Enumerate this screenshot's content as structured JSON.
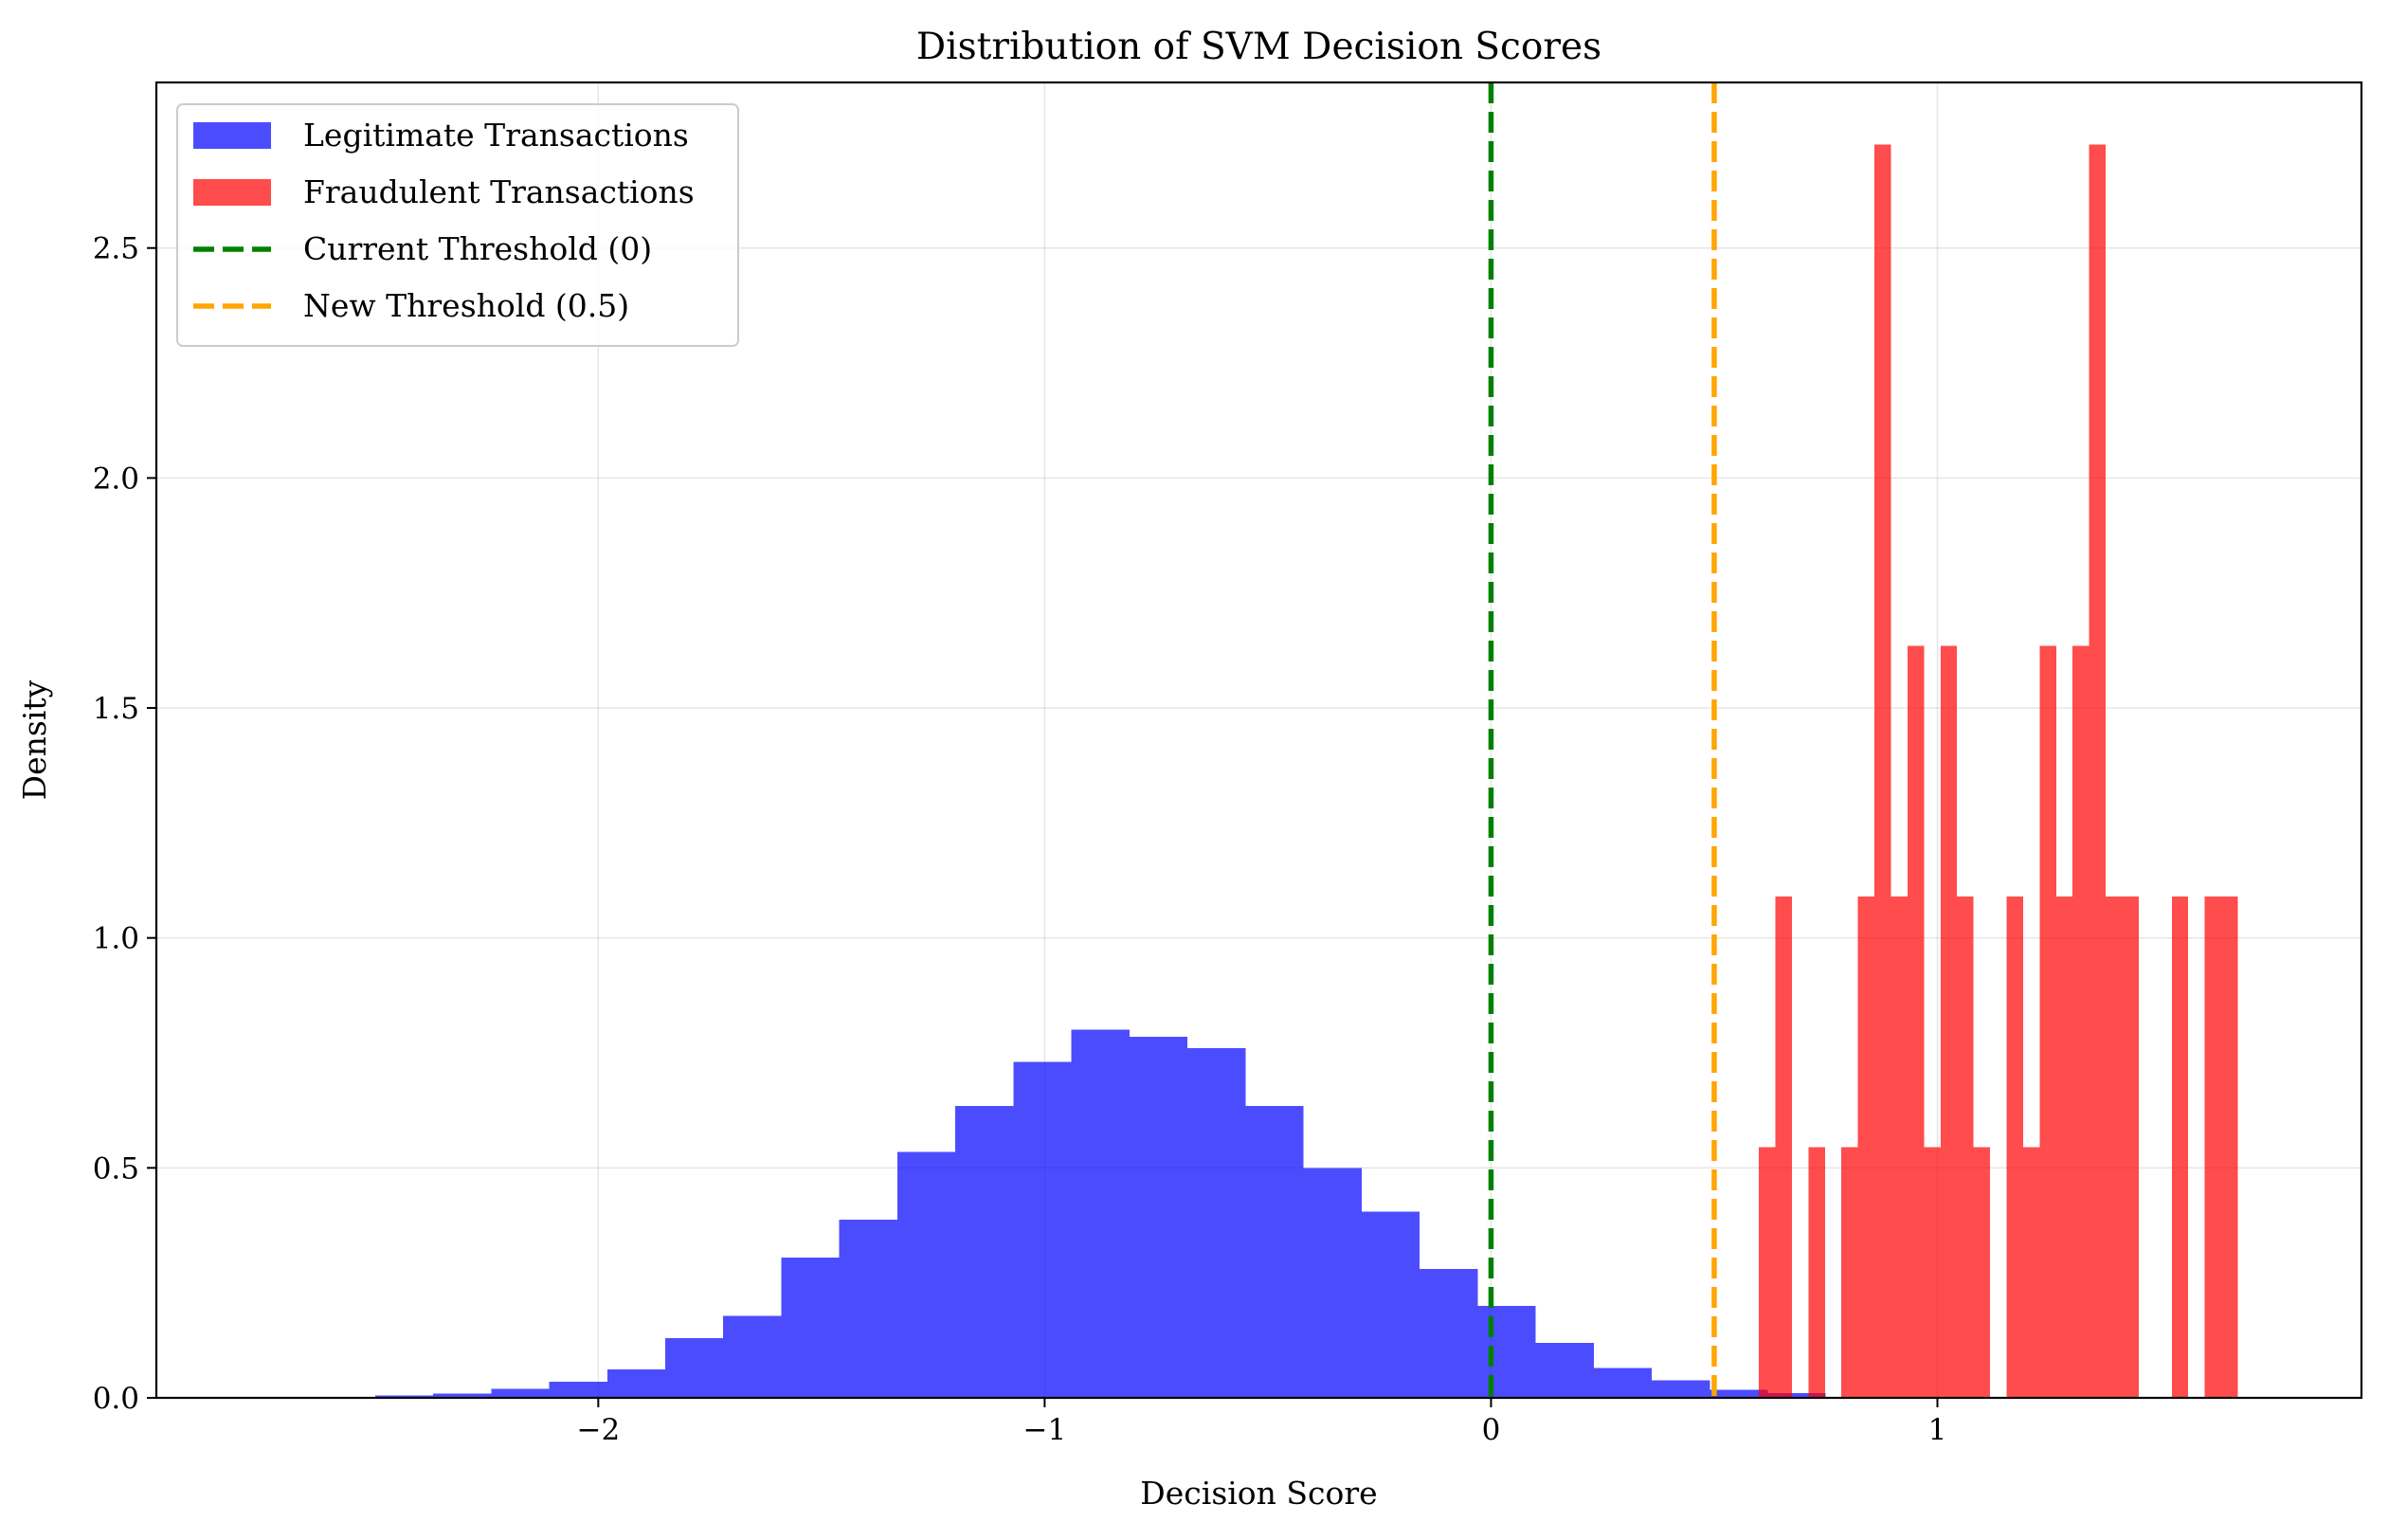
{
  "chart_data": {
    "type": "bar",
    "title": "Distribution of SVM Decision Scores",
    "xlabel": "Decision Score",
    "ylabel": "Density",
    "xlim": [
      -2.99,
      1.95
    ],
    "ylim": [
      0,
      2.86
    ],
    "xticks": [
      {
        "value": -2,
        "label": "−2"
      },
      {
        "value": -1,
        "label": "−1"
      },
      {
        "value": 0,
        "label": "0"
      },
      {
        "value": 1,
        "label": "1"
      }
    ],
    "yticks": [
      {
        "value": 0.0,
        "label": "0.0"
      },
      {
        "value": 0.5,
        "label": "0.5"
      },
      {
        "value": 1.0,
        "label": "1.0"
      },
      {
        "value": 1.5,
        "label": "1.5"
      },
      {
        "value": 2.0,
        "label": "2.0"
      },
      {
        "value": 2.5,
        "label": "2.5"
      }
    ],
    "grid": true,
    "legend_position": "top-left",
    "series": [
      {
        "name": "Legitimate Transactions",
        "kind": "histogram",
        "color": "#0000ff",
        "opacity": 0.7,
        "bin_edges": [
          -2.5,
          -2.37,
          -2.24,
          -2.11,
          -1.98,
          -1.85,
          -1.72,
          -1.59,
          -1.46,
          -1.33,
          -1.2,
          -1.07,
          -0.94,
          -0.81,
          -0.68,
          -0.55,
          -0.42,
          -0.29,
          -0.16,
          -0.03,
          0.1,
          0.23,
          0.36,
          0.49,
          0.62,
          0.75
        ],
        "values": [
          0.005,
          0.009,
          0.02,
          0.035,
          0.062,
          0.13,
          0.178,
          0.305,
          0.387,
          0.535,
          0.635,
          0.73,
          0.8,
          0.785,
          0.76,
          0.635,
          0.5,
          0.405,
          0.28,
          0.2,
          0.12,
          0.065,
          0.038,
          0.018,
          0.01
        ]
      },
      {
        "name": "Fraudulent Transactions",
        "kind": "histogram",
        "color": "#ff0000",
        "opacity": 0.7,
        "bin_edges": [
          0.6,
          0.637,
          0.674,
          0.711,
          0.748,
          0.785,
          0.822,
          0.859,
          0.896,
          0.933,
          0.97,
          1.007,
          1.044,
          1.081,
          1.118,
          1.155,
          1.192,
          1.229,
          1.266,
          1.303,
          1.34,
          1.377,
          1.414,
          1.451,
          1.488,
          1.525,
          1.562,
          1.599,
          1.636,
          1.673,
          1.71
        ],
        "values": [
          0.545,
          1.09,
          0,
          0.545,
          0,
          0.545,
          1.09,
          2.725,
          1.09,
          1.635,
          0.545,
          1.635,
          1.09,
          0.545,
          0,
          1.09,
          0.545,
          1.635,
          1.09,
          1.635,
          2.725,
          1.09,
          1.09,
          0,
          0,
          1.09,
          0,
          1.09,
          1.09,
          0
        ]
      }
    ],
    "reference_lines": [
      {
        "name": "Current Threshold (0)",
        "x": 0,
        "color": "#008000",
        "style": "dashed"
      },
      {
        "name": "New Threshold (0.5)",
        "x": 0.5,
        "color": "#ffa500",
        "style": "dashed"
      }
    ]
  }
}
